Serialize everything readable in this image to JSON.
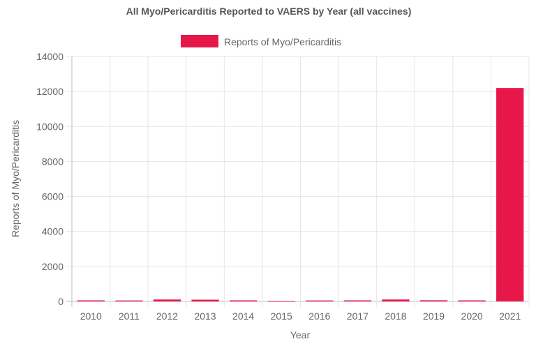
{
  "chart_data": {
    "type": "bar",
    "title": "All Myo/Pericarditis Reported to VAERS by Year (all vaccines)",
    "categories": [
      "2010",
      "2011",
      "2012",
      "2013",
      "2014",
      "2015",
      "2016",
      "2017",
      "2018",
      "2019",
      "2020",
      "2021"
    ],
    "series": [
      {
        "name": "Reports of Myo/Pericarditis",
        "color": "#e8174a",
        "values": [
          60,
          55,
          110,
          100,
          60,
          30,
          55,
          60,
          110,
          65,
          60,
          12200
        ]
      }
    ],
    "xlabel": "Year",
    "ylabel": "Reports of Myo/Pericarditis",
    "ylim": [
      0,
      14000
    ],
    "yticks": [
      "0",
      "2000",
      "4000",
      "6000",
      "8000",
      "10000",
      "12000",
      "14000"
    ],
    "grid": true,
    "legend_position": "top-center"
  }
}
